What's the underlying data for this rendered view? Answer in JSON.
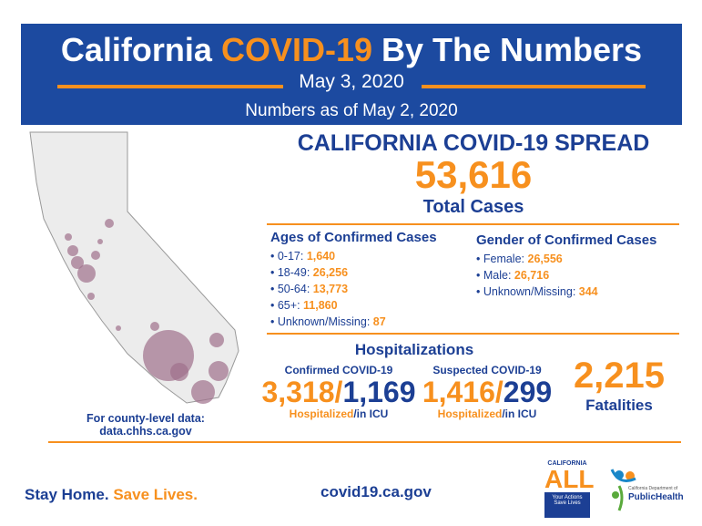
{
  "header": {
    "title_part1": "California",
    "title_highlight": "COVID-19",
    "title_part2": "By The Numbers",
    "date": "May 3, 2020",
    "as_of": "Numbers as of May 2, 2020"
  },
  "spread": {
    "heading": "CALIFORNIA COVID-19 SPREAD",
    "total_cases": "53,616",
    "total_label": "Total Cases"
  },
  "ages": {
    "heading": "Ages of Confirmed Cases",
    "items": [
      {
        "label": "0-17:",
        "value": "1,640"
      },
      {
        "label": "18-49:",
        "value": "26,256"
      },
      {
        "label": "50-64:",
        "value": "13,773"
      },
      {
        "label": "65+:",
        "value": "11,860"
      },
      {
        "label": "Unknown/Missing:",
        "value": "87"
      }
    ]
  },
  "gender": {
    "heading": "Gender of Confirmed Cases",
    "items": [
      {
        "label": "Female:",
        "value": "26,556"
      },
      {
        "label": "Male:",
        "value": "26,716"
      },
      {
        "label": "Unknown/Missing:",
        "value": "344"
      }
    ]
  },
  "hospital": {
    "heading": "Hospitalizations",
    "confirmed": {
      "label": "Confirmed COVID-19",
      "hospitalized": "3,318",
      "icu": "1,169"
    },
    "suspected": {
      "label": "Suspected COVID-19",
      "hospitalized": "1,416",
      "icu": "299"
    },
    "hosp_word": "Hospitalized",
    "icu_word": "/in ICU"
  },
  "fatalities": {
    "value": "2,215",
    "label": "Fatalities"
  },
  "county": {
    "line1": "For county-level data:",
    "line2": "data.chhs.ca.gov"
  },
  "footer": {
    "slogan1": "Stay Home.",
    "slogan2": "Save Lives.",
    "url": "covid19.ca.gov",
    "ca_all_top": "CALIFORNIA",
    "ca_all": "ALL",
    "ca_all_sub": "Your Actions Save Lives",
    "cdph_small": "California Department of",
    "cdph": "PublicHealth"
  },
  "colors": {
    "blue": "#1c4aa0",
    "orange": "#f7901e",
    "bubble": "#a0708c"
  }
}
